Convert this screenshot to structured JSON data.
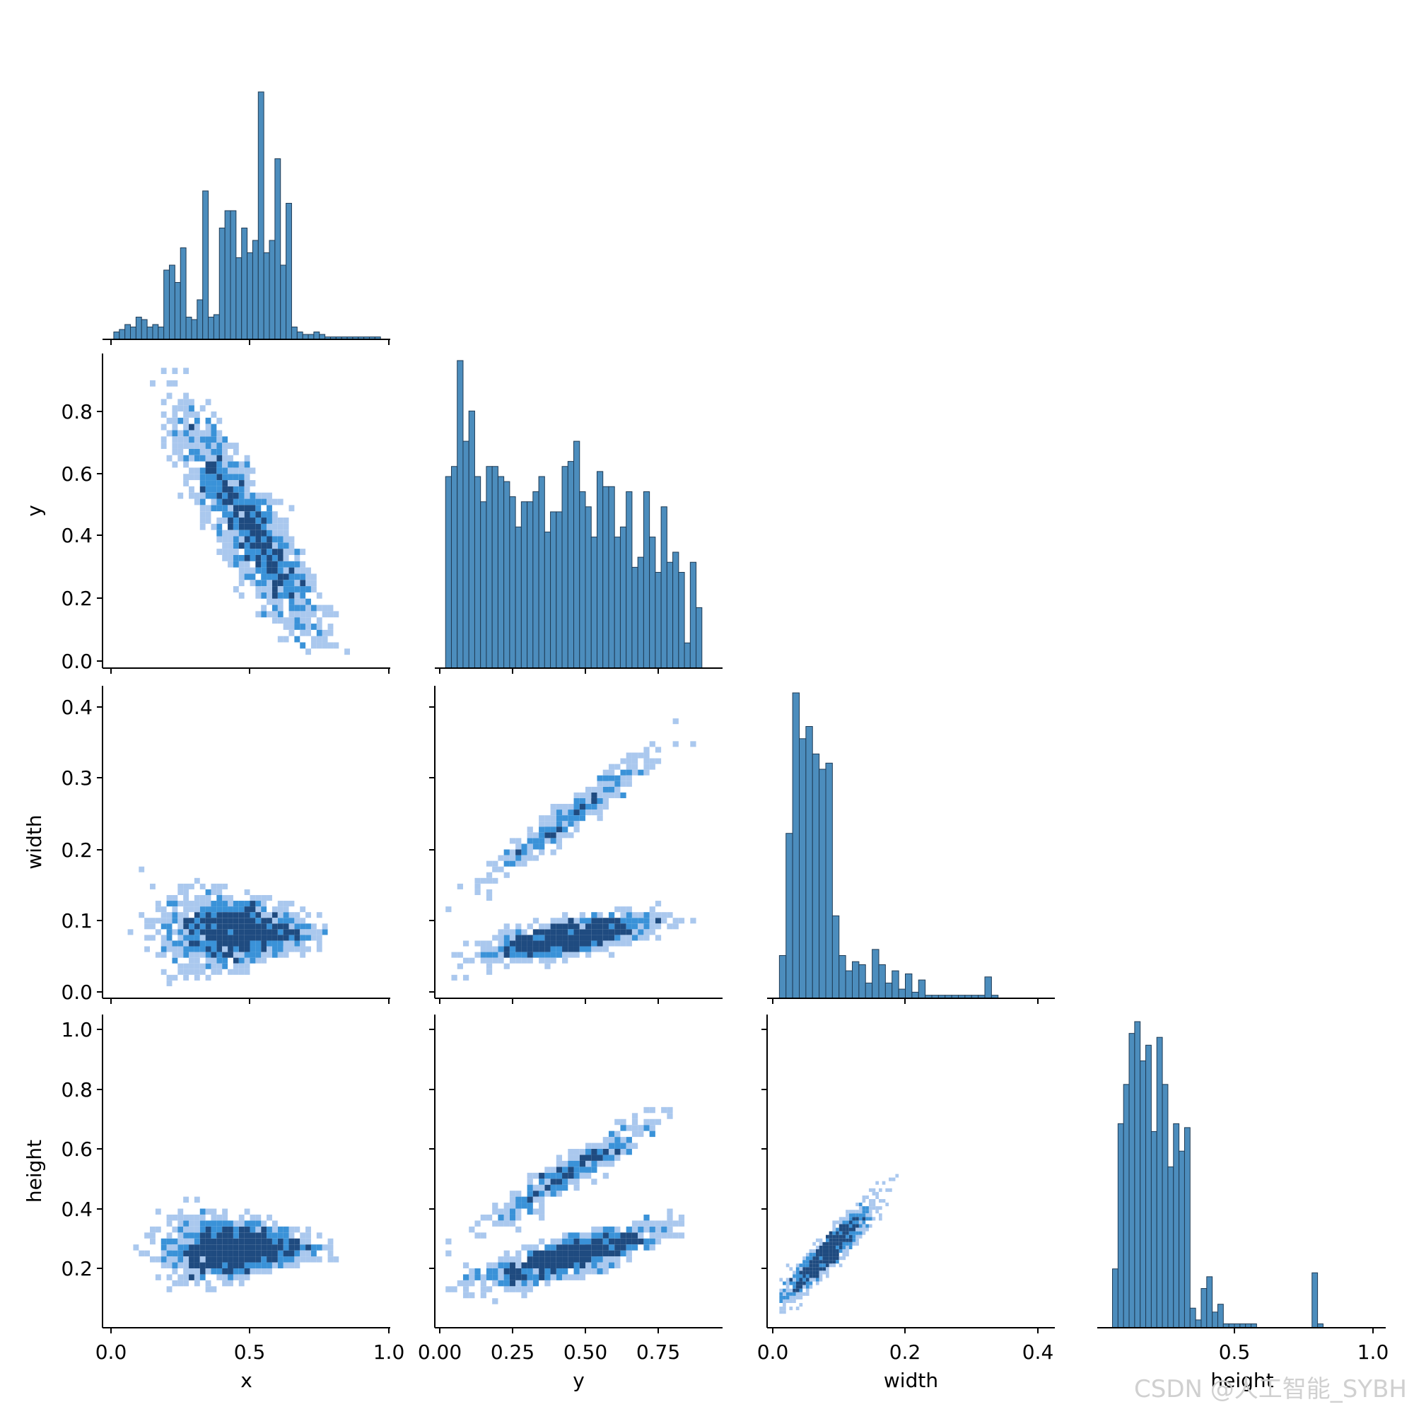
{
  "watermark": "CSDN @人工智能_SYBH",
  "colors": {
    "hist": "#4c8dbd",
    "edge": "#1f3b55",
    "heat_light": "#aac8ee",
    "heat_mid": "#3a92d8",
    "heat_dark": "#1f4b80"
  },
  "chart_data": [
    {
      "type": "bar",
      "panel": "x",
      "xlim": [
        0,
        1
      ],
      "x_ticks": [
        "0.0",
        "0.5",
        "1.0"
      ],
      "bins": [
        0.02,
        0.04,
        0.06,
        0.08,
        0.1,
        0.12,
        0.14,
        0.16,
        0.18,
        0.2,
        0.22,
        0.24,
        0.26,
        0.28,
        0.3,
        0.32,
        0.34,
        0.36,
        0.38,
        0.4,
        0.42,
        0.44,
        0.46,
        0.48,
        0.5,
        0.52,
        0.54,
        0.56,
        0.58,
        0.6,
        0.62,
        0.64,
        0.66,
        0.68,
        0.7,
        0.72,
        0.74,
        0.76,
        0.78,
        0.8,
        0.82,
        0.84,
        0.86,
        0.88,
        0.9,
        0.92,
        0.94,
        0.96
      ],
      "values": [
        3,
        4,
        6,
        5,
        9,
        8,
        5,
        6,
        5,
        28,
        30,
        23,
        37,
        9,
        8,
        16,
        60,
        9,
        10,
        45,
        52,
        52,
        33,
        45,
        35,
        40,
        100,
        35,
        40,
        73,
        30,
        55,
        5,
        3,
        2,
        2,
        3,
        2,
        1,
        1,
        1,
        1,
        1,
        1,
        1,
        1,
        1,
        1
      ],
      "ylabel": ""
    },
    {
      "type": "bar",
      "panel": "y",
      "xlim": [
        0,
        0.95
      ],
      "x_ticks": [
        "0.00",
        "0.25",
        "0.50",
        "0.75"
      ],
      "bins": [
        0.03,
        0.05,
        0.07,
        0.09,
        0.11,
        0.13,
        0.15,
        0.17,
        0.19,
        0.21,
        0.23,
        0.25,
        0.27,
        0.29,
        0.31,
        0.33,
        0.35,
        0.37,
        0.39,
        0.41,
        0.43,
        0.45,
        0.47,
        0.49,
        0.51,
        0.53,
        0.55,
        0.57,
        0.59,
        0.61,
        0.63,
        0.65,
        0.67,
        0.69,
        0.71,
        0.73,
        0.75,
        0.77,
        0.79,
        0.81,
        0.83,
        0.85,
        0.87,
        0.89,
        0.91
      ],
      "values": [
        38,
        40,
        61,
        45,
        51,
        38,
        33,
        40,
        40,
        38,
        37,
        34,
        28,
        33,
        33,
        35,
        38,
        27,
        31,
        31,
        40,
        41,
        45,
        35,
        32,
        26,
        39,
        36,
        36,
        26,
        28,
        35,
        20,
        22,
        35,
        26,
        19,
        32,
        21,
        23,
        19,
        5,
        21,
        12,
        0
      ],
      "ylabel": ""
    },
    {
      "type": "bar",
      "panel": "width",
      "xlim": [
        0,
        0.42
      ],
      "x_ticks": [
        "0.0",
        "0.2",
        "0.4"
      ],
      "bins": [
        0.015,
        0.025,
        0.035,
        0.045,
        0.055,
        0.065,
        0.075,
        0.085,
        0.095,
        0.105,
        0.115,
        0.125,
        0.135,
        0.145,
        0.155,
        0.165,
        0.175,
        0.185,
        0.195,
        0.205,
        0.215,
        0.225,
        0.235,
        0.245,
        0.255,
        0.265,
        0.275,
        0.285,
        0.295,
        0.305,
        0.315,
        0.325,
        0.335
      ],
      "values": [
        14,
        54,
        100,
        85,
        89,
        80,
        75,
        77,
        27,
        14,
        9,
        12,
        11,
        5,
        16,
        11,
        5,
        9,
        3,
        8,
        2,
        6,
        1,
        1,
        1,
        1,
        1,
        1,
        1,
        1,
        1,
        7,
        1
      ],
      "ylabel": ""
    },
    {
      "type": "bar",
      "panel": "height",
      "xlim": [
        0,
        1.05
      ],
      "x_ticks": [
        "0.5",
        "1.0"
      ],
      "bins": [
        0.07,
        0.09,
        0.11,
        0.13,
        0.15,
        0.17,
        0.19,
        0.21,
        0.23,
        0.25,
        0.27,
        0.29,
        0.31,
        0.33,
        0.35,
        0.37,
        0.39,
        0.41,
        0.43,
        0.45,
        0.47,
        0.49,
        0.51,
        0.53,
        0.55,
        0.57,
        0.59,
        0.61,
        0.63,
        0.65,
        0.67,
        0.69,
        0.71,
        0.73,
        0.75,
        0.77,
        0.79,
        0.81
      ],
      "values": [
        15,
        52,
        62,
        75,
        78,
        68,
        72,
        50,
        74,
        62,
        41,
        52,
        45,
        51,
        5,
        2,
        10,
        13,
        4,
        6,
        1,
        1,
        1,
        1,
        1,
        1,
        0,
        0,
        0,
        0,
        0,
        0,
        0,
        0,
        0,
        0,
        14,
        1
      ],
      "ylabel": ""
    },
    {
      "type": "heatmap",
      "panel": "x-y",
      "xlim": [
        0,
        1
      ],
      "ylim": [
        0,
        0.95
      ],
      "x_ticks": [
        "0.0",
        "0.5",
        "1.0"
      ],
      "y_ticks": [
        "0.0",
        "0.2",
        "0.4",
        "0.6",
        "0.8"
      ],
      "ylabel": "y"
    },
    {
      "type": "heatmap",
      "panel": "x-width",
      "xlim": [
        0,
        1
      ],
      "ylim": [
        0,
        0.42
      ],
      "x_ticks": [
        "0.0",
        "0.5",
        "1.0"
      ],
      "y_ticks": [
        "0.0",
        "0.1",
        "0.2",
        "0.3",
        "0.4"
      ],
      "ylabel": "width"
    },
    {
      "type": "heatmap",
      "panel": "y-width",
      "xlim": [
        0,
        0.95
      ],
      "ylim": [
        0,
        0.42
      ],
      "x_ticks": [
        "0.00",
        "0.25",
        "0.50",
        "0.75"
      ],
      "ylabel": ""
    },
    {
      "type": "heatmap",
      "panel": "x-height",
      "xlim": [
        0,
        1
      ],
      "ylim": [
        0,
        1.0
      ],
      "x_ticks": [
        "0.0",
        "0.5",
        "1.0"
      ],
      "y_ticks": [
        "0.2",
        "0.4",
        "0.6",
        "0.8",
        "1.0"
      ],
      "xlabel": "x",
      "ylabel": "height"
    },
    {
      "type": "heatmap",
      "panel": "y-height",
      "xlim": [
        0,
        0.95
      ],
      "ylim": [
        0,
        1.0
      ],
      "x_ticks": [
        "0.00",
        "0.25",
        "0.50",
        "0.75"
      ],
      "xlabel": "y"
    },
    {
      "type": "heatmap",
      "panel": "width-height",
      "xlim": [
        0,
        0.42
      ],
      "ylim": [
        0,
        1.0
      ],
      "x_ticks": [
        "0.0",
        "0.2",
        "0.4"
      ],
      "xlabel": "width"
    }
  ],
  "labels": {
    "x_bottom_height": "height"
  }
}
